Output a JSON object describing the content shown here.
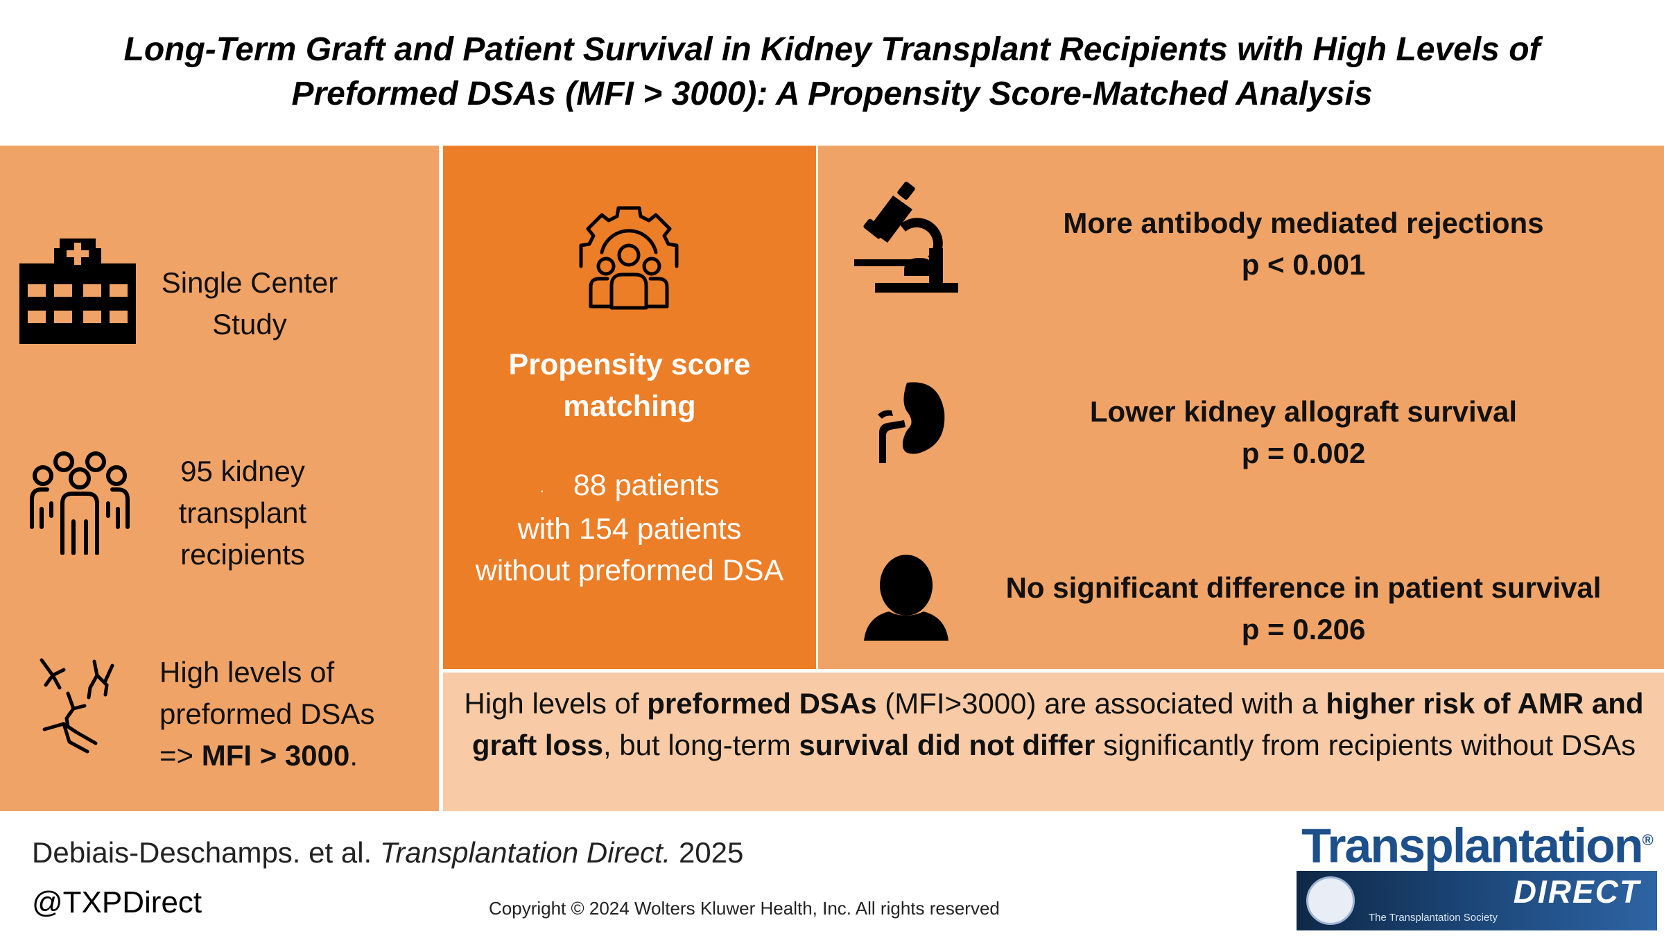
{
  "title": {
    "line1": "Long-Term Graft and Patient Survival in Kidney Transplant Recipients with High Levels of",
    "line2": "Preformed DSAs (MFI > 3000): A Propensity Score-Matched Analysis"
  },
  "left": {
    "study_line1": "Single Center",
    "study_line2": "Study",
    "recipients_line1": "95 kidney",
    "recipients_line2": "transplant",
    "recipients_line3": "recipients",
    "dsa_line1": "High levels of",
    "dsa_line2": "preformed DSAs",
    "dsa_line3_prefix": "=> ",
    "dsa_line3_bold": "MFI > 3000",
    "dsa_line3_suffix": "."
  },
  "middle": {
    "method_line1": "Propensity score",
    "method_line2": "matching",
    "detail_bullet": ".",
    "detail_line1": "88 patients",
    "detail_line2": "with 154 patients",
    "detail_line3": "without preformed DSA"
  },
  "results": [
    {
      "label": "More antibody mediated rejections",
      "p": "p < 0.001"
    },
    {
      "label": "Lower kidney allograft survival",
      "p": "p = 0.002"
    },
    {
      "label": "No significant difference in patient survival",
      "p": "p = 0.206"
    }
  ],
  "conclusion": {
    "part1": "High levels of ",
    "bold1": "preformed DSAs",
    "part2": " (MFI>3000) are associated with a ",
    "bold2": "higher risk of AMR and graft loss",
    "part3": ", but long-term ",
    "bold3": "survival did not differ",
    "part4": " significantly from recipients without DSAs"
  },
  "footer": {
    "citation_authors": "Debiais-Deschamps. et al. ",
    "citation_journal": "Transplantation Direct.",
    "citation_year": " 2025",
    "handle": "@TXPDirect",
    "copyright": "Copyright © 2024  Wolters Kluwer Health, Inc. All rights reserved"
  },
  "logo": {
    "word": "Transplantation",
    "reg": "®",
    "direct": "DIRECT",
    "society": "The Transplantation Society"
  },
  "colors": {
    "panel_light": "#F0A366",
    "panel_dark": "#EC7E28",
    "panel_pale": "#F8CBA6",
    "logo_blue": "#1D4F8B"
  }
}
